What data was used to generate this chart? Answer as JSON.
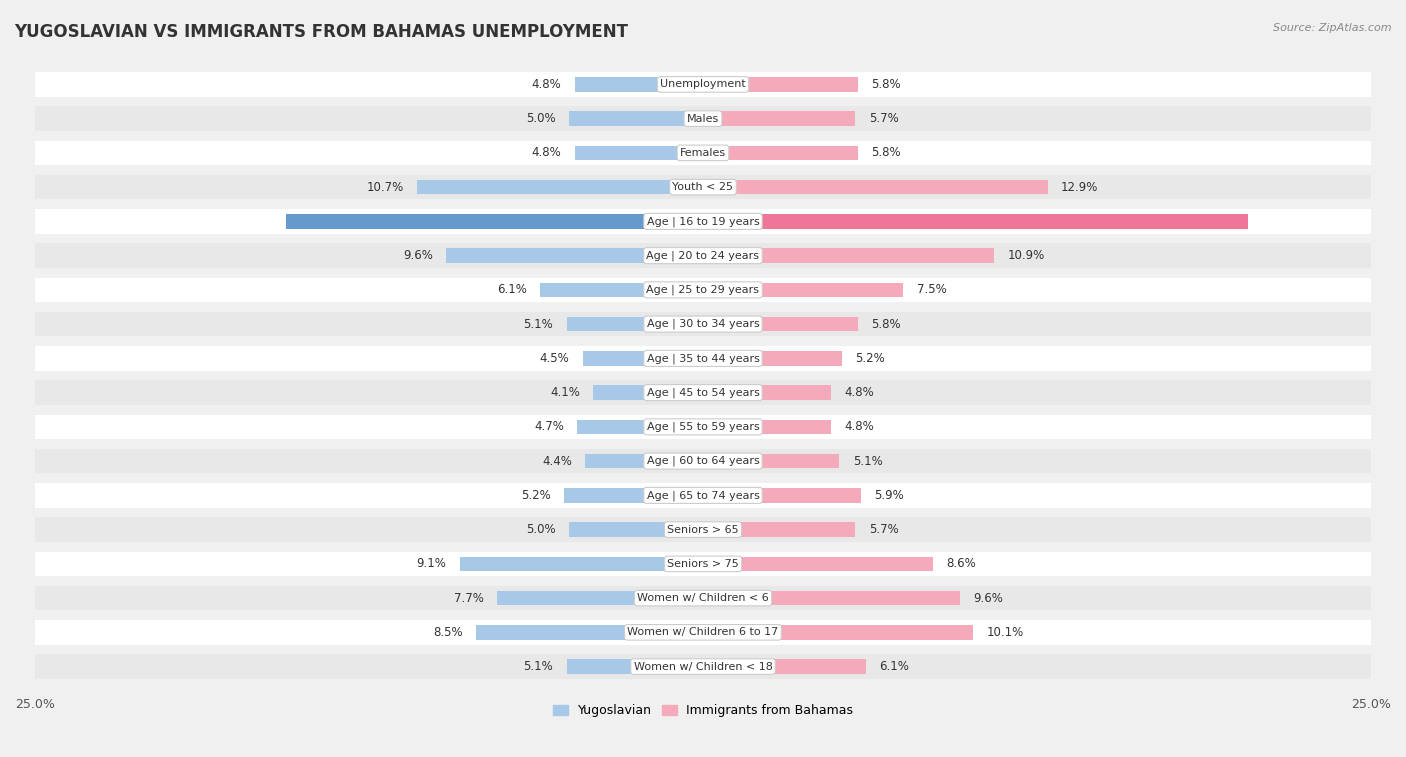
{
  "title": "YUGOSLAVIAN VS IMMIGRANTS FROM BAHAMAS UNEMPLOYMENT",
  "source": "Source: ZipAtlas.com",
  "categories": [
    "Unemployment",
    "Males",
    "Females",
    "Youth < 25",
    "Age | 16 to 19 years",
    "Age | 20 to 24 years",
    "Age | 25 to 29 years",
    "Age | 30 to 34 years",
    "Age | 35 to 44 years",
    "Age | 45 to 54 years",
    "Age | 55 to 59 years",
    "Age | 60 to 64 years",
    "Age | 65 to 74 years",
    "Seniors > 65",
    "Seniors > 75",
    "Women w/ Children < 6",
    "Women w/ Children 6 to 17",
    "Women w/ Children < 18"
  ],
  "yugoslavian": [
    4.8,
    5.0,
    4.8,
    10.7,
    15.6,
    9.6,
    6.1,
    5.1,
    4.5,
    4.1,
    4.7,
    4.4,
    5.2,
    5.0,
    9.1,
    7.7,
    8.5,
    5.1
  ],
  "bahamas": [
    5.8,
    5.7,
    5.8,
    12.9,
    20.4,
    10.9,
    7.5,
    5.8,
    5.2,
    4.8,
    4.8,
    5.1,
    5.9,
    5.7,
    8.6,
    9.6,
    10.1,
    6.1
  ],
  "yugoslav_color": "#A8C8E8",
  "bahamas_color": "#F4AABB",
  "yugoslav_color_highlight": "#6699CC",
  "bahamas_color_highlight": "#EE7799",
  "axis_max": 25.0,
  "bg_color": "#f0f0f0",
  "row_bg_white": "#ffffff",
  "row_bg_gray": "#e8e8e8",
  "legend_yugoslav": "Yugoslavian",
  "legend_bahamas": "Immigrants from Bahamas"
}
